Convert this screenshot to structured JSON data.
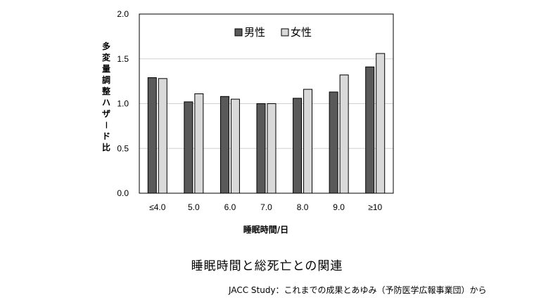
{
  "chart_data": {
    "type": "bar",
    "title": "",
    "xlabel": "睡眠時間/日",
    "ylabel": "多変量調整ハザード比",
    "ylim": [
      0,
      2.0
    ],
    "yticks": [
      "0.0",
      "0.5",
      "1.0",
      "1.5",
      "2.0"
    ],
    "categories": [
      "≤4.0",
      "5.0",
      "6.0",
      "7.0",
      "8.0",
      "9.0",
      "≥10"
    ],
    "series": [
      {
        "name": "男性",
        "color": "#595959",
        "values": [
          1.29,
          1.02,
          1.08,
          1.0,
          1.06,
          1.13,
          1.41
        ]
      },
      {
        "name": "女性",
        "color": "#d9d9d9",
        "values": [
          1.28,
          1.11,
          1.05,
          1.0,
          1.16,
          1.32,
          1.56
        ]
      }
    ],
    "grid": true,
    "legend": "top-center"
  },
  "caption": "睡眠時間と総死亡との関連",
  "source": "JACC Study：これまでの成果とあゆみ（予防医学広報事業団）から"
}
